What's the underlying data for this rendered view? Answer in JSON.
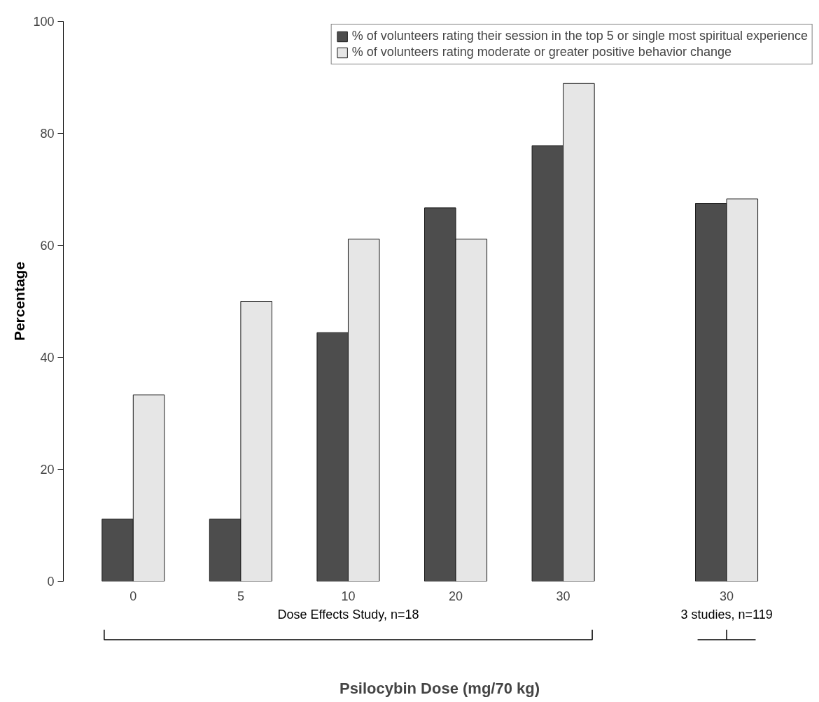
{
  "chart_data": {
    "type": "bar",
    "ylabel": "Percentage",
    "xlabel": "Psilocybin Dose (mg/70 kg)",
    "categories": [
      "0",
      "5",
      "10",
      "20",
      "30",
      "30"
    ],
    "series": [
      {
        "name": "% of volunteers rating their session in the top 5 or single most spiritual experience",
        "color": "#4d4d4d",
        "values": [
          11.1,
          11.1,
          44.4,
          66.7,
          77.8,
          67.5
        ]
      },
      {
        "name": "% of volunteers rating moderate or greater positive behavior change",
        "color": "#e6e6e6",
        "values": [
          33.3,
          50.0,
          61.1,
          61.1,
          88.9,
          68.3
        ]
      }
    ],
    "ylim": [
      0,
      100
    ],
    "yticks": [
      0,
      20,
      40,
      60,
      80,
      100
    ],
    "grid": false,
    "legend": "top right",
    "annotations": [
      "Dose Effects Study, n=18",
      "3 studies, n=119"
    ]
  }
}
